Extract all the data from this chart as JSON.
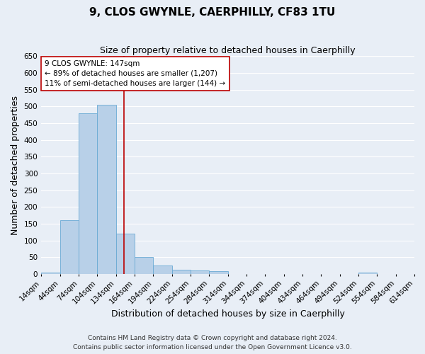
{
  "title": "9, CLOS GWYNLE, CAERPHILLY, CF83 1TU",
  "subtitle": "Size of property relative to detached houses in Caerphilly",
  "xlabel": "Distribution of detached houses by size in Caerphilly",
  "ylabel": "Number of detached properties",
  "bar_values": [
    5,
    160,
    480,
    505,
    120,
    50,
    25,
    13,
    10,
    8,
    0,
    0,
    0,
    0,
    0,
    0,
    0,
    5,
    0,
    0
  ],
  "bin_starts": [
    14,
    44,
    74,
    104,
    134,
    164,
    194,
    224,
    254,
    284,
    314,
    344,
    374,
    404,
    434,
    464,
    494,
    524,
    554,
    584
  ],
  "bin_width": 30,
  "x_tick_positions": [
    14,
    44,
    74,
    104,
    134,
    164,
    194,
    224,
    254,
    284,
    314,
    344,
    374,
    404,
    434,
    464,
    494,
    524,
    554,
    584,
    614
  ],
  "x_tick_labels": [
    "14sqm",
    "44sqm",
    "74sqm",
    "104sqm",
    "134sqm",
    "164sqm",
    "194sqm",
    "224sqm",
    "254sqm",
    "284sqm",
    "314sqm",
    "344sqm",
    "374sqm",
    "404sqm",
    "434sqm",
    "464sqm",
    "494sqm",
    "524sqm",
    "554sqm",
    "584sqm",
    "614sqm"
  ],
  "xlim": [
    14,
    614
  ],
  "ylim": [
    0,
    650
  ],
  "yticks": [
    0,
    50,
    100,
    150,
    200,
    250,
    300,
    350,
    400,
    450,
    500,
    550,
    600,
    650
  ],
  "bar_color": "#b8d0e8",
  "bar_edge_color": "#6aaad4",
  "vline_x": 147,
  "vline_color": "#bb0000",
  "annotation_title": "9 CLOS GWYNLE: 147sqm",
  "annotation_line1": "← 89% of detached houses are smaller (1,207)",
  "annotation_line2": "11% of semi-detached houses are larger (144) →",
  "annotation_box_facecolor": "#ffffff",
  "annotation_box_edgecolor": "#bb0000",
  "footnote1": "Contains HM Land Registry data © Crown copyright and database right 2024.",
  "footnote2": "Contains public sector information licensed under the Open Government Licence v3.0.",
  "fig_facecolor": "#e8eef6",
  "ax_facecolor": "#e8eef6",
  "grid_color": "#ffffff",
  "title_fontsize": 11,
  "subtitle_fontsize": 9,
  "axis_label_fontsize": 9,
  "tick_fontsize": 7.5,
  "annotation_fontsize": 7.5,
  "footnote_fontsize": 6.5
}
